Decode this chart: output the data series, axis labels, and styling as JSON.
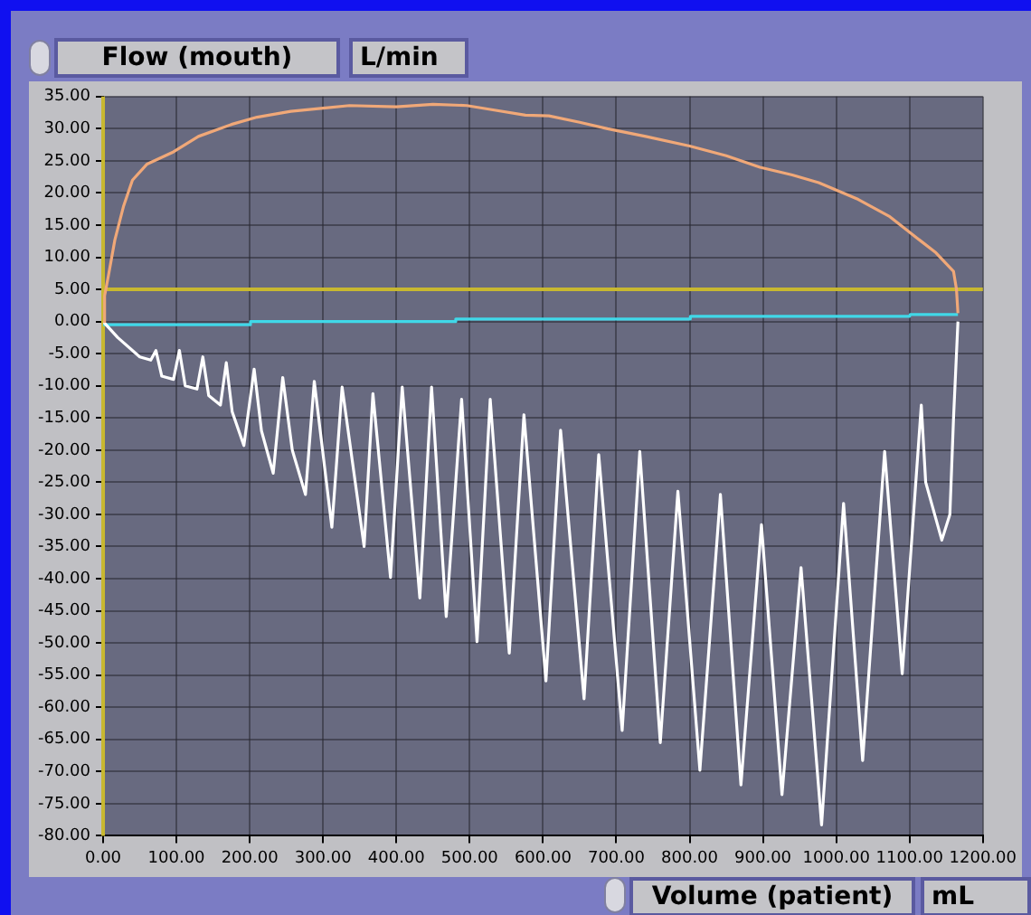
{
  "chart_data": {
    "type": "line",
    "ylabel": "Flow (mouth)",
    "xlabel": "Volume (patient)",
    "annotations": [
      "L/min",
      "mL"
    ],
    "xlim": [
      0,
      1200
    ],
    "ylim": [
      -80,
      35
    ],
    "xticks": [
      {
        "value": 0,
        "label": "0.00"
      },
      {
        "value": 100,
        "label": "100.00"
      },
      {
        "value": 200,
        "label": "200.00"
      },
      {
        "value": 300,
        "label": "300.00"
      },
      {
        "value": 400,
        "label": "400.00"
      },
      {
        "value": 500,
        "label": "500.00"
      },
      {
        "value": 600,
        "label": "600.00"
      },
      {
        "value": 700,
        "label": "700.00"
      },
      {
        "value": 800,
        "label": "800.00"
      },
      {
        "value": 900,
        "label": "900.00"
      },
      {
        "value": 1000,
        "label": "1000.00"
      },
      {
        "value": 1100,
        "label": "1100.00"
      },
      {
        "value": 1200,
        "label": "1200.00"
      }
    ],
    "yticks": [
      {
        "value": 35,
        "label": "35.00"
      },
      {
        "value": 30,
        "label": "30.00"
      },
      {
        "value": 25,
        "label": "25.00"
      },
      {
        "value": 20,
        "label": "20.00"
      },
      {
        "value": 15,
        "label": "15.00"
      },
      {
        "value": 10,
        "label": "10.00"
      },
      {
        "value": 5,
        "label": "5.00"
      },
      {
        "value": 0,
        "label": "0.00"
      },
      {
        "value": -5,
        "label": "-5.00"
      },
      {
        "value": -10,
        "label": "-10.00"
      },
      {
        "value": -15,
        "label": "-15.00"
      },
      {
        "value": -20,
        "label": "-20.00"
      },
      {
        "value": -25,
        "label": "-25.00"
      },
      {
        "value": -30,
        "label": "-30.00"
      },
      {
        "value": -35,
        "label": "-35.00"
      },
      {
        "value": -40,
        "label": "-40.00"
      },
      {
        "value": -45,
        "label": "-45.00"
      },
      {
        "value": -50,
        "label": "-50.00"
      },
      {
        "value": -55,
        "label": "-55.00"
      },
      {
        "value": -60,
        "label": "-60.00"
      },
      {
        "value": -65,
        "label": "-65.00"
      },
      {
        "value": -70,
        "label": "-70.00"
      },
      {
        "value": -75,
        "label": "-75.00"
      },
      {
        "value": -80,
        "label": "-80.00"
      }
    ],
    "grid": true,
    "legend": false,
    "marker": "none",
    "line_style": "solid",
    "ref_lines": [
      {
        "axis": "y",
        "value": 5,
        "label": null,
        "color": "#c8b830"
      },
      {
        "axis": "x",
        "value": 0,
        "label": null,
        "color": "#c8b830"
      }
    ],
    "series": [
      {
        "color": "#f0a878",
        "x": [
          0,
          2,
          7,
          16,
          28,
          40,
          60,
          96,
          130,
          176,
          210,
          256,
          300,
          336,
          400,
          450,
          496,
          528,
          576,
          608,
          650,
          688,
          740,
          800,
          850,
          896,
          940,
          976,
          1030,
          1072,
          1110,
          1136,
          1150,
          1160,
          1164,
          1166
        ],
        "values": [
          0,
          4,
          7,
          12.7,
          18,
          22,
          24.5,
          26.4,
          28.8,
          30.7,
          31.8,
          32.7,
          33.2,
          33.6,
          33.4,
          33.8,
          33.6,
          33,
          32.1,
          32,
          31,
          30,
          28.8,
          27.3,
          25.8,
          24,
          22.8,
          21.6,
          19,
          16.4,
          13,
          10.7,
          9,
          7.8,
          5,
          1.3
        ]
      },
      {
        "color": "#ffffff",
        "x": [
          0,
          20,
          50,
          65,
          72,
          80,
          96,
          104,
          112,
          128,
          136,
          144,
          160,
          168,
          176,
          192,
          206,
          216,
          232,
          245,
          258,
          276,
          288,
          312,
          326,
          356,
          368,
          392,
          408,
          432,
          448,
          468,
          489,
          510,
          528,
          554,
          574,
          604,
          624,
          656,
          676,
          708,
          732,
          760,
          784,
          814,
          842,
          870,
          898,
          926,
          952,
          980,
          1010,
          1036,
          1066,
          1090,
          1116,
          1122,
          1144,
          1155,
          1160,
          1166
        ],
        "values": [
          0,
          -2.5,
          -5.5,
          -6,
          -4.5,
          -8.5,
          -9,
          -4.5,
          -10,
          -10.5,
          -5.5,
          -11.5,
          -13,
          -6.4,
          -14,
          -19.3,
          -7.4,
          -17,
          -23.6,
          -8.7,
          -20,
          -26.9,
          -9.3,
          -32,
          -10.2,
          -35,
          -11.2,
          -39.8,
          -10.2,
          -43,
          -10.2,
          -45.9,
          -12.1,
          -49.8,
          -12.1,
          -51.6,
          -14.5,
          -55.9,
          -16.9,
          -58.7,
          -20.7,
          -63.6,
          -20.2,
          -65.5,
          -26.4,
          -69.8,
          -26.9,
          -72.1,
          -31.6,
          -73.6,
          -38.3,
          -78.3,
          -28.3,
          -68.3,
          -20.2,
          -54.8,
          -13,
          -25,
          -34,
          -30,
          -15,
          0
        ]
      },
      {
        "color": "#40d8e8",
        "x": [
          0,
          200,
          201,
          480,
          481,
          800,
          801,
          1100,
          1101,
          1166
        ],
        "values": [
          -0.5,
          -0.5,
          0,
          0,
          0.4,
          0.4,
          0.8,
          0.8,
          1.1,
          1.1
        ]
      }
    ]
  }
}
